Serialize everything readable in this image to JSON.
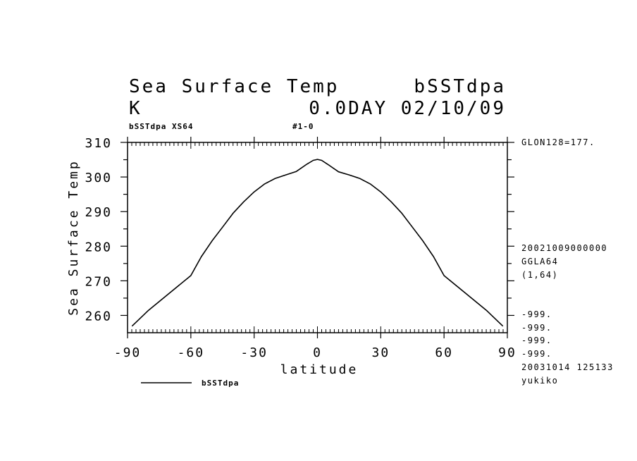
{
  "header": {
    "title_left": "Sea Surface Temp",
    "title_right": "bSSTdpa",
    "unit": "K",
    "day_date": "0.0DAY 02/10/09",
    "sub_left": "bSSTdpa XS64",
    "sub_mid": "#1-0"
  },
  "side_info": {
    "glon": "GLON128=177.",
    "timestamp": "20021009000000",
    "grid": "GGLA64",
    "range": "(1,64)",
    "missing": [
      "-999.",
      "-999.",
      "-999.",
      "-999."
    ],
    "created": "20031014 125133",
    "user": "yukiko"
  },
  "chart_data": {
    "type": "line",
    "title": "Sea Surface Temp",
    "xlabel": "latitude",
    "ylabel": "Sea Surface Temp",
    "xlim": [
      -90,
      90
    ],
    "ylim": [
      255,
      310
    ],
    "x_ticks": [
      -90,
      -60,
      -30,
      0,
      30,
      60,
      90
    ],
    "x_tick_labels": [
      "-90",
      "-60",
      "-30",
      "0",
      "30",
      "60",
      "90"
    ],
    "y_ticks": [
      260,
      270,
      280,
      290,
      300,
      310
    ],
    "y_tick_labels": [
      "260",
      "270",
      "280",
      "290",
      "300",
      "310"
    ],
    "grid": false,
    "legend_position": "bottom-left",
    "series": [
      {
        "name": "bSSTdpa",
        "x": [
          -87.9,
          -80,
          -70,
          -60,
          -55,
          -50,
          -45,
          -40,
          -35,
          -30,
          -25,
          -20,
          -15,
          -10,
          -5,
          -2,
          0,
          2,
          5,
          10,
          15,
          20,
          25,
          30,
          35,
          40,
          45,
          50,
          55,
          60,
          70,
          80,
          87.9
        ],
        "y": [
          256.9,
          261.5,
          266.5,
          271.5,
          277.0,
          281.5,
          285.5,
          289.5,
          292.8,
          295.7,
          298.0,
          299.6,
          300.6,
          301.6,
          303.7,
          304.8,
          305.1,
          304.8,
          303.6,
          301.5,
          300.6,
          299.6,
          298.0,
          295.7,
          292.8,
          289.5,
          285.5,
          281.5,
          277.0,
          271.5,
          266.5,
          261.5,
          256.9
        ]
      }
    ]
  }
}
